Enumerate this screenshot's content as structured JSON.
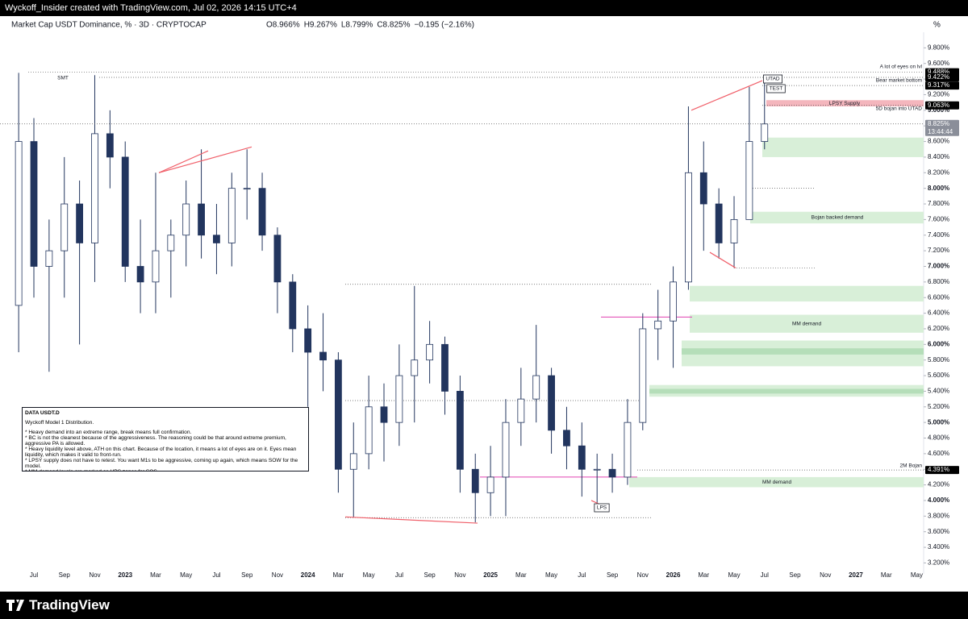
{
  "header": {
    "credit": "Wyckoff_Insider created with TradingView.com, Jul 02, 2026 14:15 UTC+4",
    "brand": "TradingView"
  },
  "chart_data": {
    "type": "candlestick",
    "title": "Market Cap USDT Dominance, % · 3D · CRYPTOCAP",
    "legend_values": [
      "O8.966%",
      "H9.267%",
      "L8.799%",
      "C8.825%",
      "−0.195 (−2.16%)"
    ],
    "unit_label": "%",
    "categories": [
      null,
      "Jul",
      null,
      "Sep",
      null,
      "Nov",
      null,
      "2023",
      null,
      "Mar",
      null,
      "May",
      null,
      "Jul",
      null,
      "Sep",
      null,
      "Nov",
      null,
      "2024",
      null,
      "Mar",
      null,
      "May",
      null,
      "Jul",
      null,
      "Sep",
      null,
      "Nov",
      null,
      "2025",
      null,
      "Mar",
      null,
      "May",
      null,
      "Jul",
      null,
      "Sep",
      null,
      "Nov",
      null,
      "2026",
      null,
      "Mar",
      null,
      "May",
      null,
      "Jul",
      null,
      "Sep",
      null,
      "Nov",
      null,
      "2027",
      null,
      "Mar",
      null,
      "May"
    ],
    "open": [
      6.5,
      8.6,
      7.0,
      7.2,
      7.8,
      7.3,
      8.7,
      8.4,
      7.0,
      6.8,
      7.2,
      7.4,
      7.8,
      7.4,
      7.3,
      8.0,
      8.0,
      7.4,
      6.8,
      6.2,
      5.9,
      5.8,
      4.4,
      4.6,
      5.2,
      5.0,
      5.6,
      5.8,
      6.0,
      5.4,
      4.4,
      4.1,
      4.3,
      5.0,
      5.3,
      5.6,
      4.9,
      4.7,
      4.4,
      4.4,
      4.3,
      5.0,
      6.2,
      6.3,
      6.8,
      8.2,
      7.8,
      7.3,
      7.6,
      8.6,
      null,
      null,
      null,
      null,
      null,
      null,
      null,
      null,
      null,
      null
    ],
    "high": [
      9.48,
      8.9,
      7.6,
      8.4,
      8.1,
      9.45,
      9.0,
      8.6,
      7.6,
      8.2,
      7.6,
      8.1,
      8.5,
      7.8,
      8.2,
      8.5,
      8.2,
      7.5,
      6.9,
      6.5,
      6.4,
      5.9,
      5.0,
      5.6,
      5.5,
      6.0,
      6.75,
      6.3,
      6.1,
      5.6,
      4.6,
      4.7,
      5.3,
      5.7,
      6.25,
      5.7,
      5.2,
      5.0,
      4.6,
      4.6,
      5.3,
      6.4,
      6.7,
      7.0,
      9.05,
      8.6,
      8.0,
      7.9,
      9.3,
      9.38,
      null,
      null,
      null,
      null,
      null,
      null,
      null,
      null,
      null,
      null
    ],
    "low": [
      5.9,
      6.6,
      5.65,
      6.6,
      6.0,
      6.8,
      8.0,
      6.8,
      6.4,
      6.4,
      6.6,
      7.0,
      7.1,
      6.9,
      7.0,
      7.6,
      7.2,
      6.4,
      5.9,
      5.2,
      5.4,
      4.1,
      3.78,
      4.4,
      4.5,
      4.7,
      5.0,
      5.5,
      5.1,
      4.1,
      3.72,
      3.8,
      3.8,
      4.7,
      5.0,
      4.6,
      4.4,
      4.05,
      3.95,
      4.1,
      4.2,
      4.9,
      5.8,
      5.7,
      6.7,
      7.2,
      7.1,
      6.98,
      7.6,
      8.5,
      null,
      null,
      null,
      null,
      null,
      null,
      null,
      null,
      null,
      null
    ],
    "close": [
      8.6,
      7.0,
      7.2,
      7.8,
      7.3,
      8.7,
      8.4,
      7.0,
      6.8,
      7.2,
      7.4,
      7.8,
      7.4,
      7.3,
      8.0,
      8.0,
      7.4,
      6.8,
      6.2,
      5.9,
      5.8,
      4.4,
      4.6,
      5.2,
      5.0,
      5.6,
      5.8,
      6.0,
      5.4,
      4.4,
      4.1,
      4.3,
      5.0,
      5.3,
      5.6,
      4.9,
      4.7,
      4.4,
      4.4,
      4.3,
      5.0,
      6.2,
      6.3,
      6.8,
      8.2,
      7.8,
      7.3,
      7.6,
      8.6,
      8.825,
      null,
      null,
      null,
      null,
      null,
      null,
      null,
      null,
      null,
      null
    ],
    "up_color": "#ffffff",
    "down_color": "#22355e",
    "ylim": [
      3.06,
      10.0
    ],
    "yticks": [
      {
        "value": 9.8,
        "label": "9.800%"
      },
      {
        "value": 9.6,
        "label": "9.600%"
      },
      {
        "value": 9.4,
        "label": "9.400%"
      },
      {
        "value": 9.2,
        "label": "9.200%"
      },
      {
        "value": 9.0,
        "label": "9.000%"
      },
      {
        "value": 8.8,
        "label": "8.800%"
      },
      {
        "value": 8.6,
        "label": "8.600%"
      },
      {
        "value": 8.4,
        "label": "8.400%"
      },
      {
        "value": 8.2,
        "label": "8.200%"
      },
      {
        "value": 8.0,
        "label": "8.000%"
      },
      {
        "value": 7.8,
        "label": "7.800%"
      },
      {
        "value": 7.6,
        "label": "7.600%"
      },
      {
        "value": 7.4,
        "label": "7.400%"
      },
      {
        "value": 7.2,
        "label": "7.200%"
      },
      {
        "value": 7.0,
        "label": "7.000%"
      },
      {
        "value": 6.8,
        "label": "6.800%"
      },
      {
        "value": 6.6,
        "label": "6.600%"
      },
      {
        "value": 6.4,
        "label": "6.400%"
      },
      {
        "value": 6.2,
        "label": "6.200%"
      },
      {
        "value": 6.0,
        "label": "6.000%"
      },
      {
        "value": 5.8,
        "label": "5.800%"
      },
      {
        "value": 5.6,
        "label": "5.600%"
      },
      {
        "value": 5.4,
        "label": "5.400%"
      },
      {
        "value": 5.2,
        "label": "5.200%"
      },
      {
        "value": 5.0,
        "label": "5.000%"
      },
      {
        "value": 4.8,
        "label": "4.800%"
      },
      {
        "value": 4.6,
        "label": "4.600%"
      },
      {
        "value": 4.4,
        "label": "4.400%"
      },
      {
        "value": 4.2,
        "label": "4.200%"
      },
      {
        "value": 4.0,
        "label": "4.000%"
      },
      {
        "value": 3.8,
        "label": "3.800%"
      },
      {
        "value": 3.6,
        "label": "3.600%"
      },
      {
        "value": 3.4,
        "label": "3.400%"
      },
      {
        "value": 3.2,
        "label": "3.200%"
      }
    ],
    "price_labels": [
      {
        "value": 9.488,
        "label": "9.488%"
      },
      {
        "value": 9.422,
        "label": "9.422%"
      },
      {
        "value": 9.317,
        "label": "9.317%"
      },
      {
        "value": 9.063,
        "label": "9.063%"
      },
      {
        "value": 8.825,
        "label": "8.825%"
      },
      {
        "value": 4.391,
        "label": "4.391%"
      }
    ],
    "countdown": "13:44:44",
    "dotted_levels": [
      8.0,
      6.98,
      6.77,
      5.28,
      3.78
    ],
    "magenta_levels": [
      6.35,
      4.3
    ],
    "trendlines": [
      [
        8.2,
        8.53
      ],
      [
        8.2,
        8.48
      ],
      [
        3.79,
        3.71
      ],
      [
        9.0,
        9.38
      ],
      [
        7.18,
        6.98
      ],
      [
        4.0,
        3.93
      ]
    ],
    "zones": [
      {
        "range": [
          9.05,
          9.13
        ],
        "color": "#f4b6bd",
        "label": "LPSY Supply"
      },
      {
        "range": [
          8.4,
          8.65
        ],
        "color": "#d8efd8"
      },
      {
        "range": [
          7.55,
          7.7
        ],
        "color": "#d8efd8",
        "label": "Bojan backed demand"
      },
      {
        "range": [
          6.55,
          6.75
        ],
        "color": "#d8efd8"
      },
      {
        "range": [
          6.15,
          6.38
        ],
        "color": "#d8efd8",
        "label": "MM demand"
      },
      {
        "range": [
          5.72,
          6.05
        ],
        "color": "#d8efd8"
      },
      {
        "range": [
          5.87,
          5.95
        ],
        "color": "#b5deb9"
      },
      {
        "range": [
          5.33,
          5.48
        ],
        "color": "#d8efd8"
      },
      {
        "range": [
          5.37,
          5.43
        ],
        "color": "#b5deb9"
      },
      {
        "range": [
          4.17,
          4.3
        ],
        "color": "#d8efd8",
        "label": "MM demand"
      }
    ],
    "annotations": [
      "SMT",
      "UTAD",
      "TEST",
      "A lot of eyes on lvl",
      "Bear market bottom",
      "5D bojan into UTAD",
      "2M Bojan",
      "LPS"
    ],
    "notes": {
      "title": "DATA USDT.D",
      "subtitle": "Wyckoff Model 1 Distribution.",
      "bullets": [
        "* Heavy demand into an extreme range, break means full confirmation.",
        "* BC is not the cleanest because of the aggressiveness. The reasoning could be that around extreme premium, aggressive PA is allowed.",
        "* Heavy liquidity level above, ATH on this chart. Because of the location, it means a lot of eyes are on it. Eyes mean liquidity, which makes it valid to front-run.",
        "* LPSY supply does not have to retest. You want M1s to be aggressive, coming up again, which means SOW for the model.",
        "* MM demand levels are marked as HPS zones for SOS."
      ]
    }
  }
}
